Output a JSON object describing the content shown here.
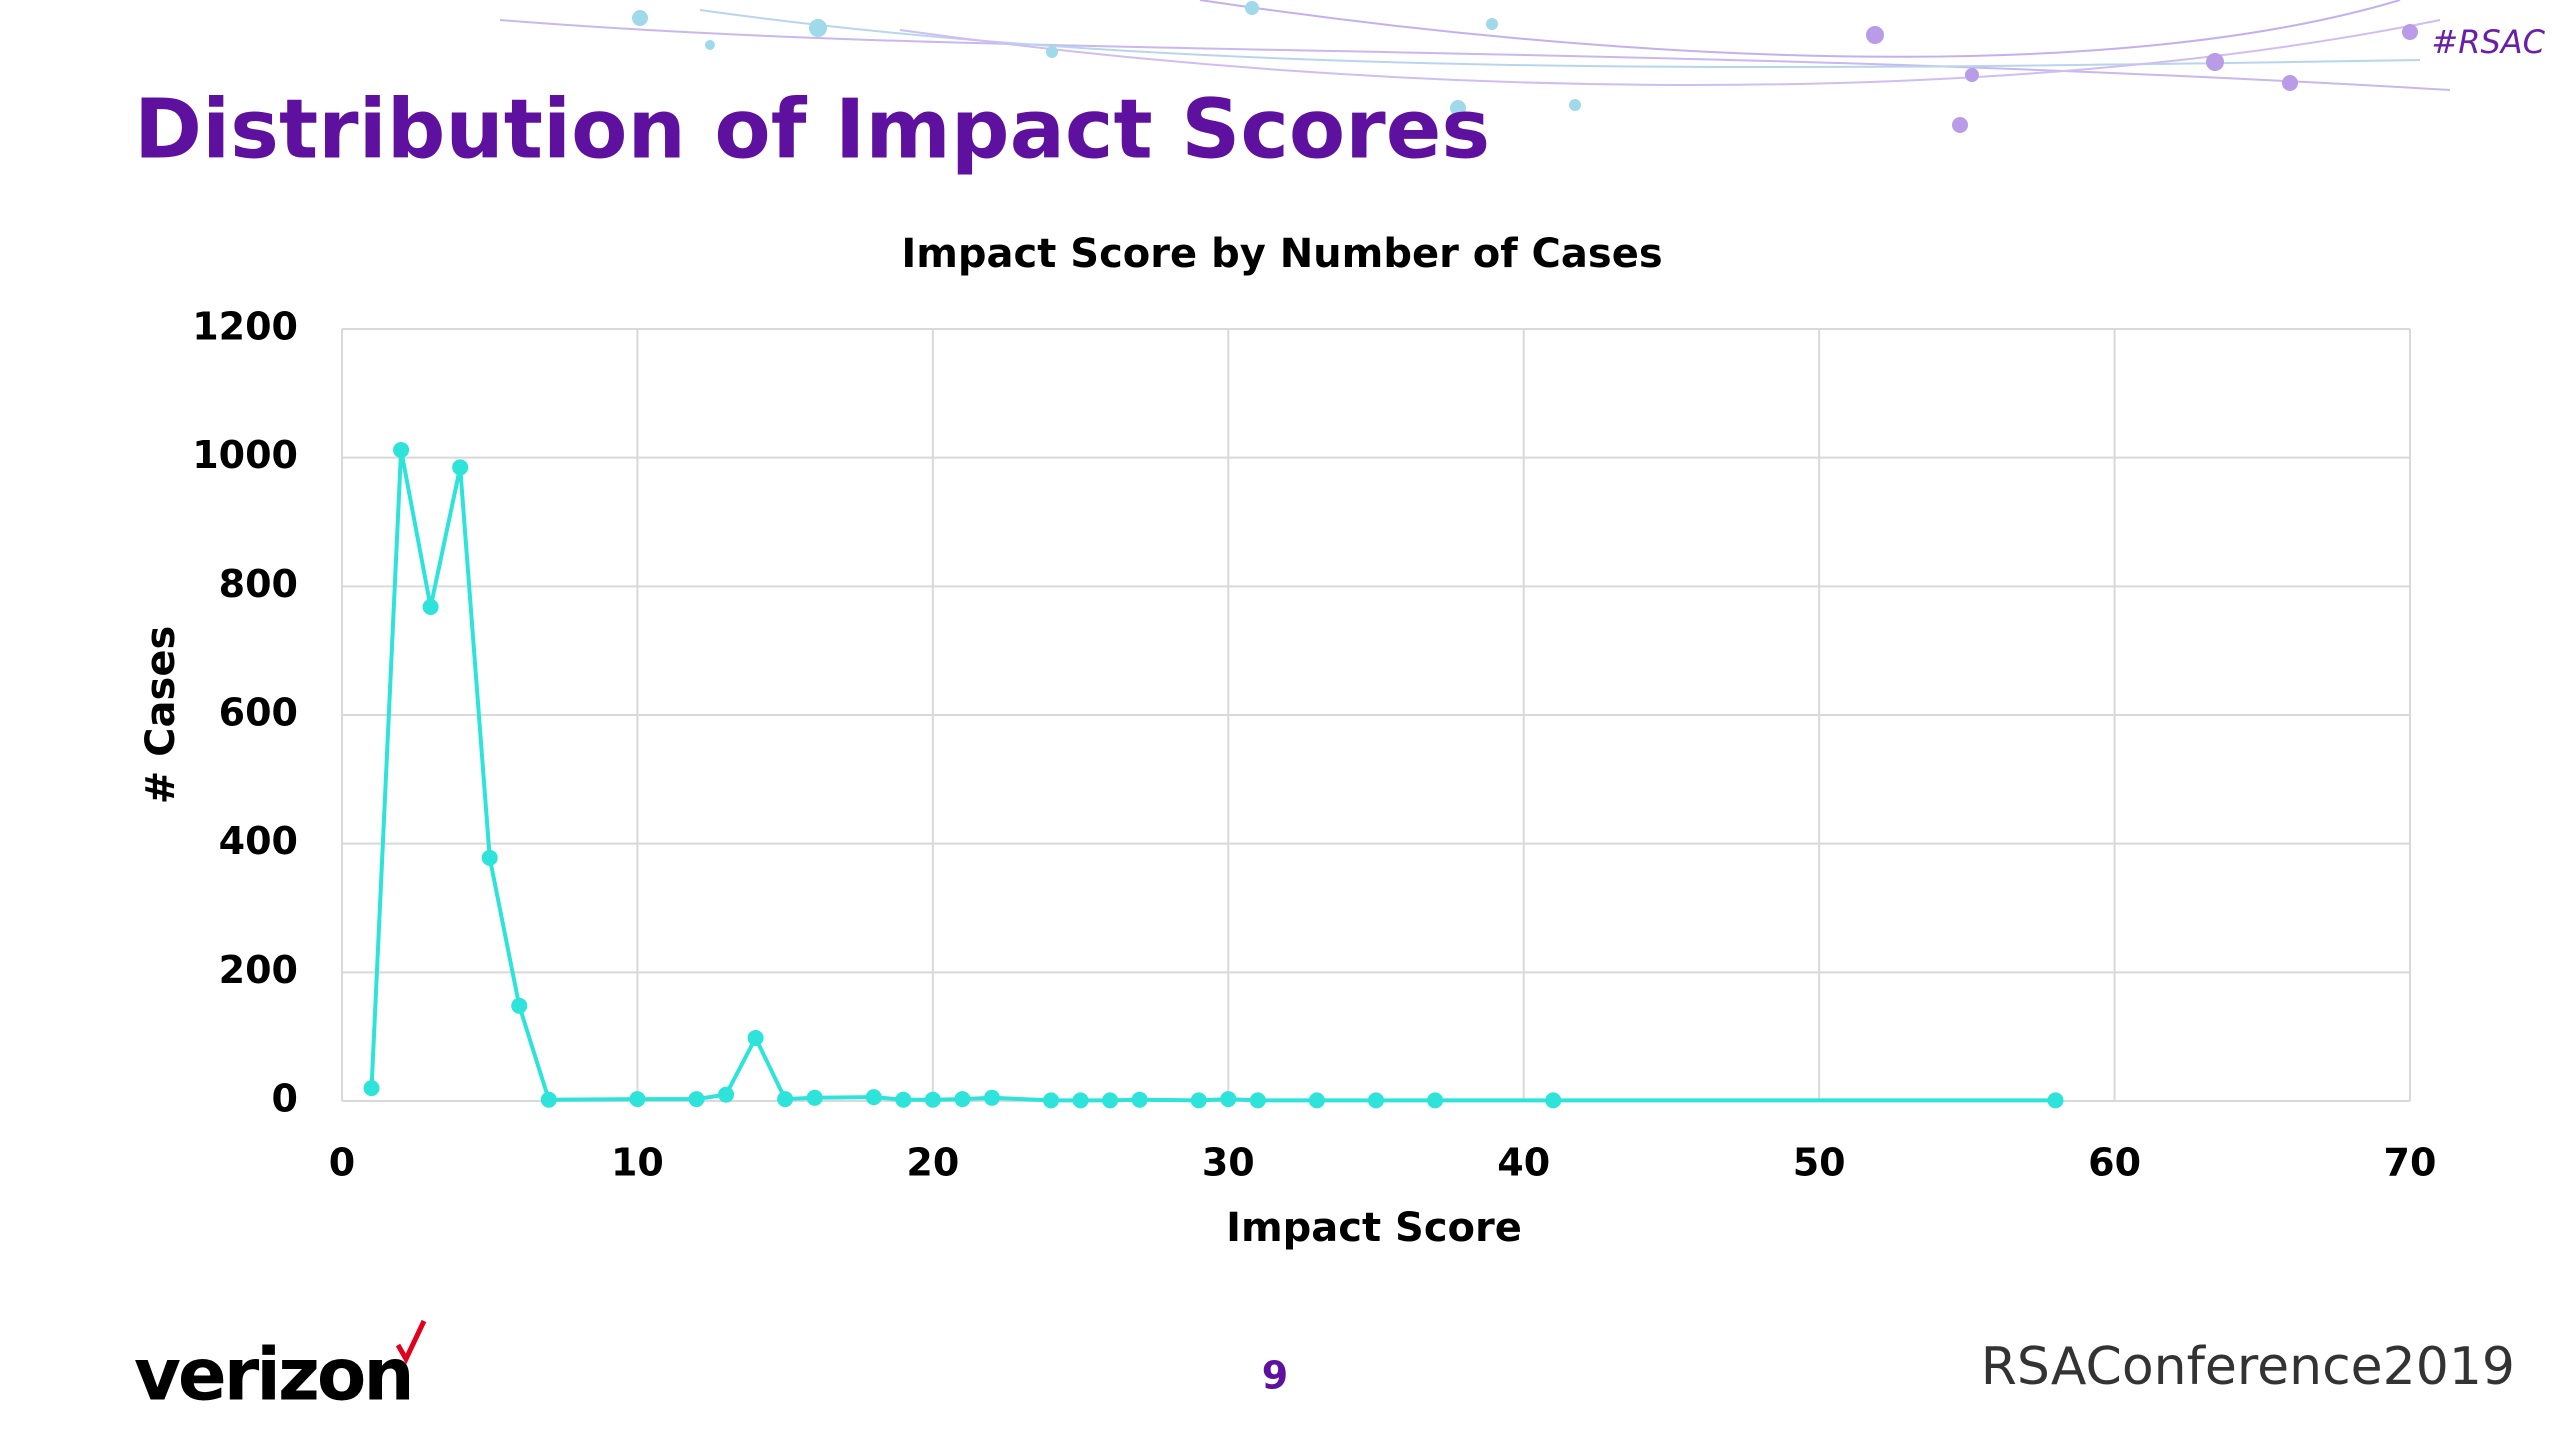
{
  "slide": {
    "title": "Distribution of Impact Scores",
    "hashtag": "#RSAC",
    "logo": "verizon",
    "page_number": "9",
    "event": "RSAConference2019"
  },
  "chart_data": {
    "type": "line",
    "title": "Impact Score by Number of Cases",
    "x_label": "Impact Score",
    "y_label": "# Cases",
    "x": [
      1,
      2,
      3,
      4,
      5,
      6,
      7,
      10,
      12,
      13,
      14,
      15,
      16,
      18,
      19,
      20,
      21,
      22,
      24,
      25,
      26,
      27,
      29,
      30,
      31,
      33,
      35,
      37,
      41,
      58
    ],
    "series": [
      {
        "name": "Cases",
        "color": "#2ee3d9",
        "values": [
          20,
          1012,
          768,
          985,
          378,
          148,
          2,
          3,
          3,
          10,
          98,
          3,
          5,
          6,
          2,
          2,
          3,
          5,
          1,
          1,
          1,
          2,
          1,
          3,
          1,
          1,
          1,
          1,
          1,
          1
        ]
      }
    ],
    "xlim": [
      0,
      70
    ],
    "xticks": [
      0,
      10,
      20,
      30,
      40,
      50,
      60,
      70
    ],
    "ylim": [
      0,
      1200
    ],
    "yticks": [
      0,
      200,
      400,
      600,
      800,
      1000,
      1200
    ],
    "grid": true
  }
}
